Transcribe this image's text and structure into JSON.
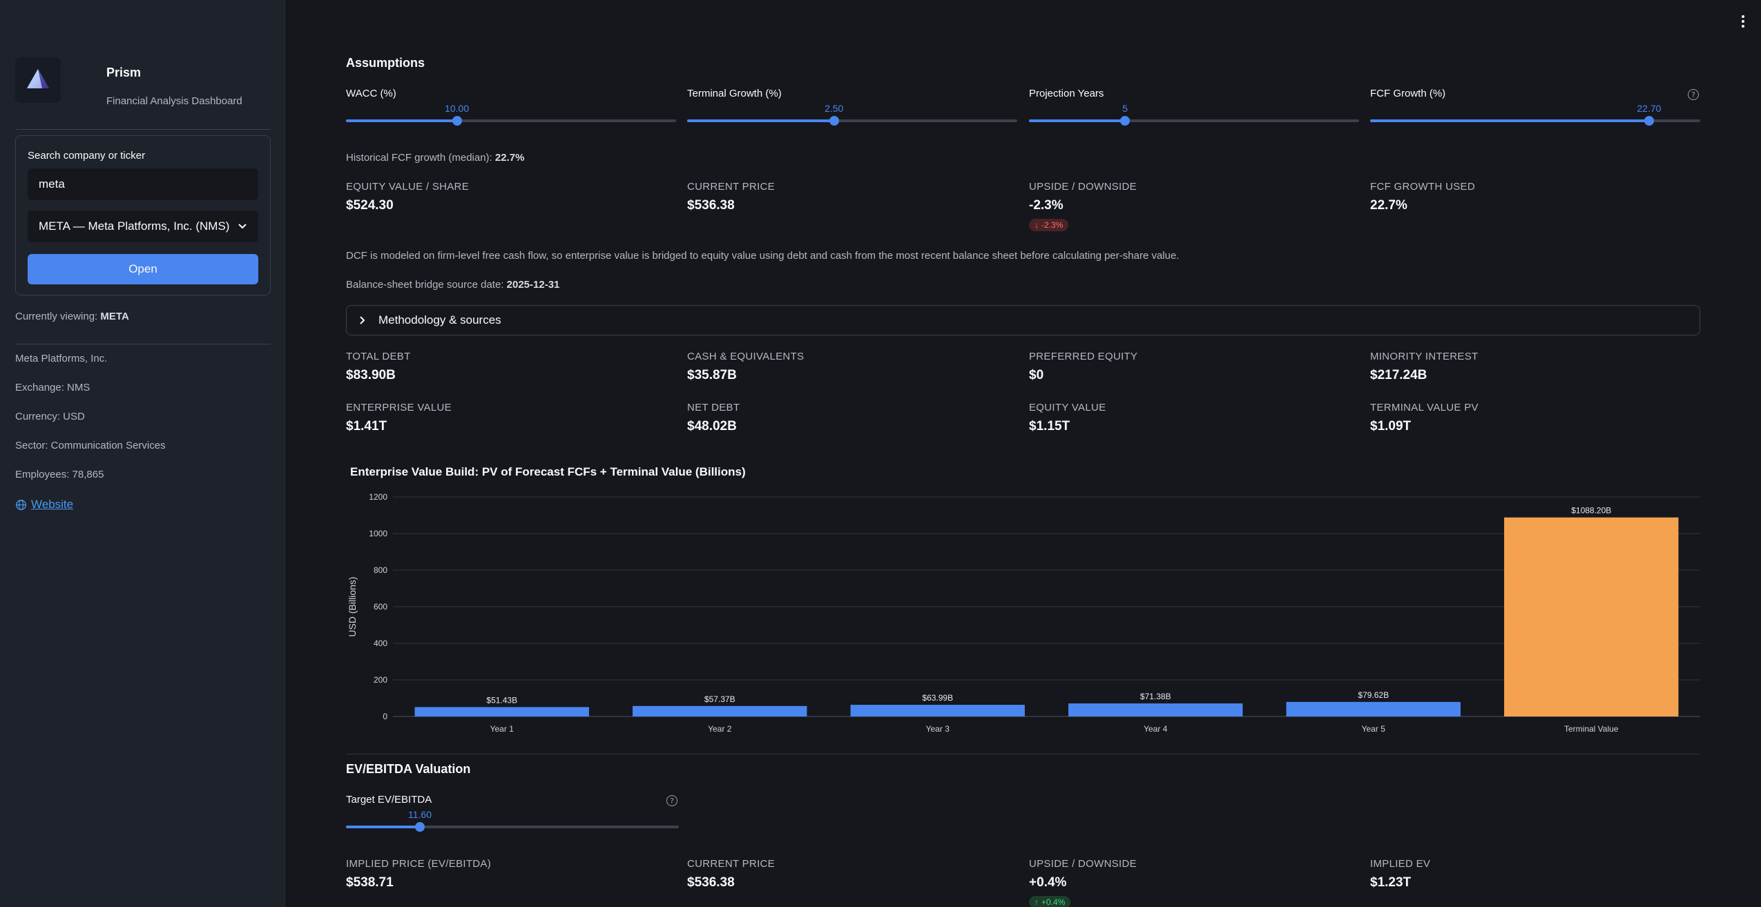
{
  "sidebar": {
    "app_title": "Prism",
    "app_subtitle": "Financial Analysis Dashboard",
    "search_label": "Search company or ticker",
    "search_value": "meta",
    "select_value": "META — Meta Platforms, Inc. (NMS)",
    "open_label": "Open",
    "currently_viewing_prefix": "Currently viewing:",
    "currently_viewing_ticker": "META",
    "company_name": "Meta Platforms, Inc.",
    "exchange": "Exchange: NMS",
    "currency": "Currency: USD",
    "sector": "Sector: Communication Services",
    "employees": "Employees: 78,865",
    "website_label": "Website"
  },
  "assumptions": {
    "title": "Assumptions",
    "sliders": [
      {
        "label": "WACC (%)",
        "value": "10.00",
        "fraction": 0.336
      },
      {
        "label": "Terminal Growth (%)",
        "value": "2.50",
        "fraction": 0.445
      },
      {
        "label": "Projection Years",
        "value": "5",
        "fraction": 0.291
      },
      {
        "label": "FCF Growth (%)",
        "value": "22.70",
        "fraction": 0.845
      }
    ],
    "historical_prefix": "Historical FCF growth (median):",
    "historical_value": "22.7%"
  },
  "dcf_metrics": [
    {
      "label": "EQUITY VALUE / SHARE",
      "value": "$524.30"
    },
    {
      "label": "CURRENT PRICE",
      "value": "$536.38"
    },
    {
      "label": "UPSIDE / DOWNSIDE",
      "value": "-2.3%",
      "delta": "-2.3%"
    },
    {
      "label": "FCF GROWTH USED",
      "value": "22.7%"
    }
  ],
  "dcf_note": "DCF is modeled on firm-level free cash flow, so enterprise value is bridged to equity value using debt and cash from the most recent balance sheet before calculating per-share value.",
  "bridge_date_prefix": "Balance-sheet bridge source date:",
  "bridge_date": "2025-12-31",
  "expander_label": "Methodology & sources",
  "bridge_metrics": [
    {
      "label": "TOTAL DEBT",
      "value": "$83.90B"
    },
    {
      "label": "CASH & EQUIVALENTS",
      "value": "$35.87B"
    },
    {
      "label": "PREFERRED EQUITY",
      "value": "$0"
    },
    {
      "label": "MINORITY INTEREST",
      "value": "$217.24B"
    },
    {
      "label": "ENTERPRISE VALUE",
      "value": "$1.41T"
    },
    {
      "label": "NET DEBT",
      "value": "$48.02B"
    },
    {
      "label": "EQUITY VALUE",
      "value": "$1.15T"
    },
    {
      "label": "TERMINAL VALUE PV",
      "value": "$1.09T"
    }
  ],
  "chart_data": {
    "type": "bar",
    "title": "Enterprise Value Build: PV of Forecast FCFs + Terminal Value (Billions)",
    "ylabel": "USD (Billions)",
    "xlabel": "",
    "ylim": [
      0,
      1200
    ],
    "yticks": [
      0,
      200,
      400,
      600,
      800,
      1000,
      1200
    ],
    "categories": [
      "Year 1",
      "Year 2",
      "Year 3",
      "Year 4",
      "Year 5",
      "Terminal Value"
    ],
    "values": [
      51.43,
      57.37,
      63.99,
      71.38,
      79.62,
      1088.2
    ],
    "labels": [
      "$51.43B",
      "$57.37B",
      "$63.99B",
      "$71.38B",
      "$79.62B",
      "$1088.20B"
    ],
    "colors": [
      "#4a86f0",
      "#4a86f0",
      "#4a86f0",
      "#4a86f0",
      "#4a86f0",
      "#f4a24f"
    ],
    "grid": true
  },
  "ev_ebitda": {
    "title": "EV/EBITDA Valuation",
    "slider_label": "Target EV/EBITDA",
    "slider_value": "11.60",
    "slider_fraction": 0.222,
    "metrics": [
      {
        "label": "IMPLIED PRICE (EV/EBITDA)",
        "value": "$538.71"
      },
      {
        "label": "CURRENT PRICE",
        "value": "$536.38"
      },
      {
        "label": "UPSIDE / DOWNSIDE",
        "value": "+0.4%",
        "delta": "+0.4%"
      },
      {
        "label": "IMPLIED EV",
        "value": "$1.23T"
      }
    ]
  }
}
